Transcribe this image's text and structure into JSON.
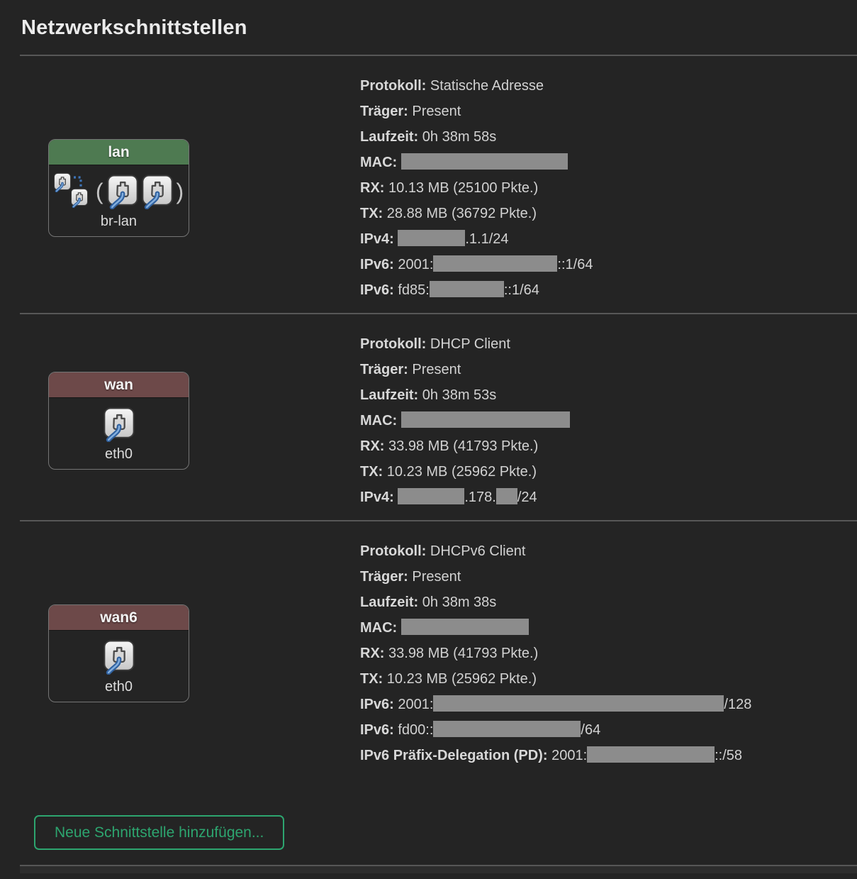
{
  "title": "Netzwerkschnittstellen",
  "icons": {
    "paren_open": "(",
    "paren_close": ")"
  },
  "add_button": {
    "label": "Neue Schnittstelle hinzufügen..."
  },
  "colors": {
    "background": "#242424",
    "text": "#d2d2d2",
    "divider": "#575757",
    "redact": "#8c8c8c",
    "lan_header": "#4e7a51",
    "wan_header": "#6d4949",
    "accent_green": "#2da56f"
  },
  "interfaces": [
    {
      "name": "lan",
      "device": "br-lan",
      "kind": "bridge",
      "header_color": "#4e7a51",
      "info": [
        {
          "label": "Protokoll:",
          "segments": [
            {
              "text": " Statische Adresse"
            }
          ]
        },
        {
          "label": "Träger:",
          "segments": [
            {
              "text": " Present"
            }
          ]
        },
        {
          "label": "Laufzeit:",
          "segments": [
            {
              "text": " 0h 38m 58s"
            }
          ]
        },
        {
          "label": "MAC:",
          "segments": [
            {
              "text": " "
            },
            {
              "redact": 235
            }
          ]
        },
        {
          "label": "RX:",
          "segments": [
            {
              "text": " 10.13 MB (25100 Pkte.)"
            }
          ]
        },
        {
          "label": "TX:",
          "segments": [
            {
              "text": " 28.88 MB (36792 Pkte.)"
            }
          ]
        },
        {
          "label": "IPv4:",
          "segments": [
            {
              "text": " "
            },
            {
              "redact": 95
            },
            {
              "text": ".1.1/24"
            }
          ]
        },
        {
          "label": "IPv6:",
          "segments": [
            {
              "text": " 2001:"
            },
            {
              "redact": 175
            },
            {
              "text": "::1/64"
            }
          ]
        },
        {
          "label": "IPv6:",
          "segments": [
            {
              "text": " fd85:"
            },
            {
              "redact": 105
            },
            {
              "text": "::1/64"
            }
          ]
        }
      ]
    },
    {
      "name": "wan",
      "device": "eth0",
      "kind": "port",
      "header_color": "#6d4949",
      "info": [
        {
          "label": "Protokoll:",
          "segments": [
            {
              "text": " DHCP Client"
            }
          ]
        },
        {
          "label": "Träger:",
          "segments": [
            {
              "text": " Present"
            }
          ]
        },
        {
          "label": "Laufzeit:",
          "segments": [
            {
              "text": " 0h 38m 53s"
            }
          ]
        },
        {
          "label": "MAC:",
          "segments": [
            {
              "text": " "
            },
            {
              "redact": 238
            }
          ]
        },
        {
          "label": "RX:",
          "segments": [
            {
              "text": " 33.98 MB (41793 Pkte.)"
            }
          ]
        },
        {
          "label": "TX:",
          "segments": [
            {
              "text": " 10.23 MB (25962 Pkte.)"
            }
          ]
        },
        {
          "label": "IPv4:",
          "segments": [
            {
              "text": " "
            },
            {
              "redact": 94
            },
            {
              "text": ".178."
            },
            {
              "redact": 30
            },
            {
              "text": "/24"
            }
          ]
        }
      ]
    },
    {
      "name": "wan6",
      "device": "eth0",
      "kind": "port",
      "header_color": "#6d4949",
      "info": [
        {
          "label": "Protokoll:",
          "segments": [
            {
              "text": " DHCPv6 Client"
            }
          ]
        },
        {
          "label": "Träger:",
          "segments": [
            {
              "text": " Present"
            }
          ]
        },
        {
          "label": "Laufzeit:",
          "segments": [
            {
              "text": " 0h 38m 38s"
            }
          ]
        },
        {
          "label": "MAC:",
          "segments": [
            {
              "text": " "
            },
            {
              "redact": 180
            }
          ]
        },
        {
          "label": "RX:",
          "segments": [
            {
              "text": " 33.98 MB (41793 Pkte.)"
            }
          ]
        },
        {
          "label": "TX:",
          "segments": [
            {
              "text": " 10.23 MB (25962 Pkte.)"
            }
          ]
        },
        {
          "label": "IPv6:",
          "segments": [
            {
              "text": " 2001:"
            },
            {
              "redact": 410
            },
            {
              "text": "/128"
            }
          ]
        },
        {
          "label": "IPv6:",
          "segments": [
            {
              "text": " fd00::"
            },
            {
              "redact": 208
            },
            {
              "text": "/64"
            }
          ]
        },
        {
          "label": "IPv6 Präfix-Delegation (PD):",
          "segments": [
            {
              "text": " 2001:"
            },
            {
              "redact": 180
            },
            {
              "text": "::/58"
            }
          ]
        }
      ]
    }
  ]
}
